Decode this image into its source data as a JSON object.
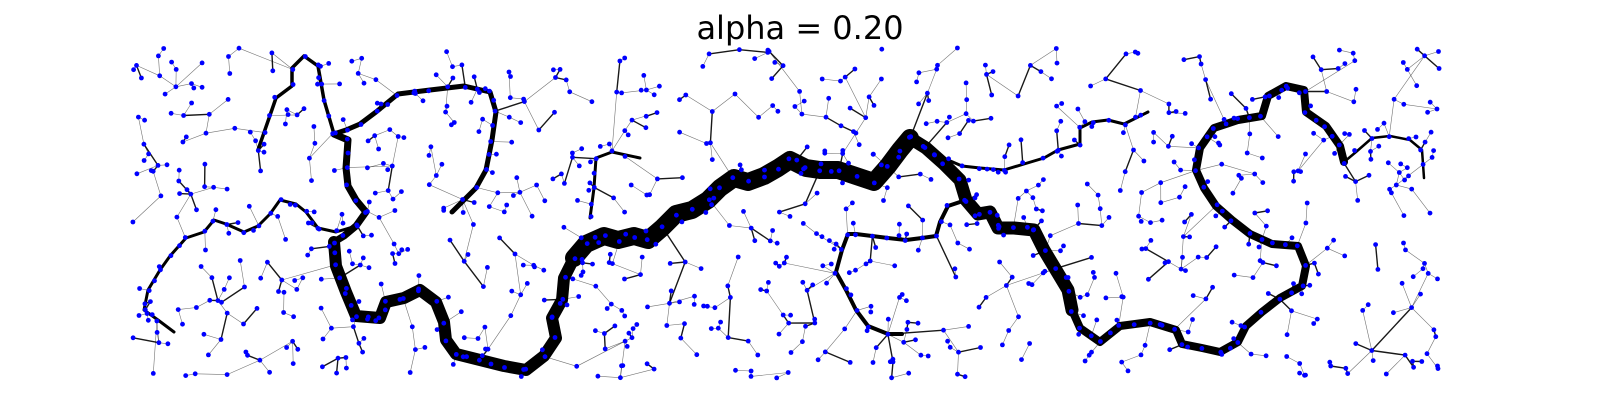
{
  "figure": {
    "title": "alpha = 0.20"
  },
  "colors": {
    "background": "#ffffff",
    "node": "#0000ff",
    "edge": "#000000"
  }
}
